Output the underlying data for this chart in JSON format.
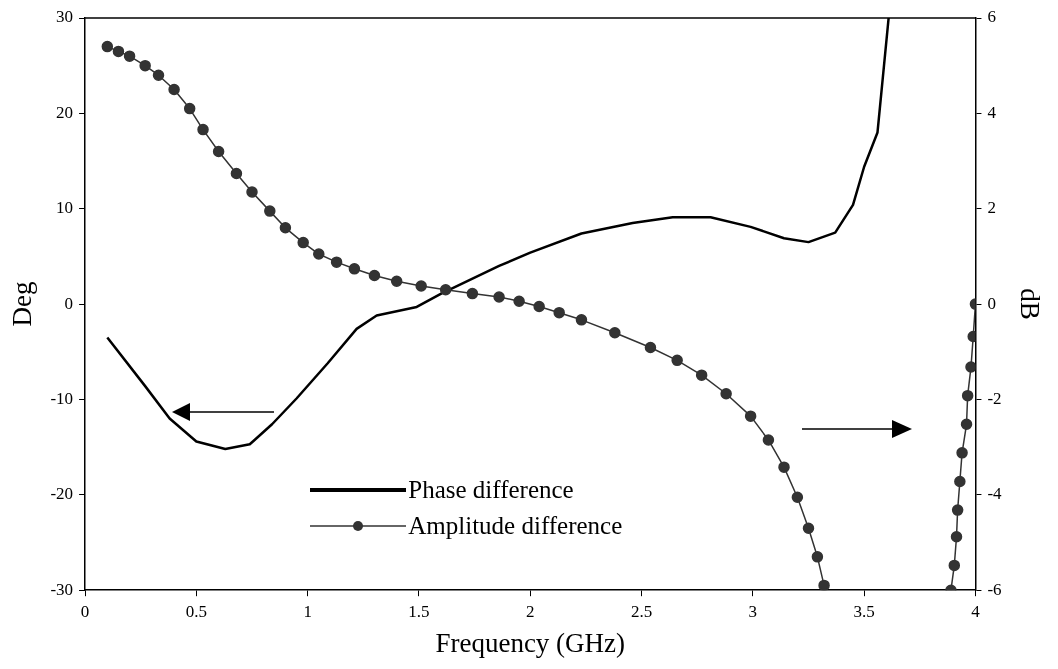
{
  "chart_data": {
    "type": "line",
    "xlabel": "Frequency (GHz)",
    "ylabel": "Deg",
    "y2label": "dB",
    "xlim": [
      0,
      4
    ],
    "xticks": [
      0,
      0.5,
      1,
      1.5,
      2,
      2.5,
      3,
      3.5,
      4
    ],
    "ylim": [
      -30,
      30
    ],
    "yticks": [
      -30,
      -20,
      -10,
      0,
      10,
      20,
      30
    ],
    "y2lim": [
      -6,
      6
    ],
    "y2ticks": [
      -6,
      -4,
      -2,
      0,
      2,
      4,
      6
    ],
    "grid": false,
    "legend": "bottom",
    "series": [
      {
        "name": "Phase difference",
        "color": "#000000",
        "marker": "none",
        "x": [
          0.1,
          0.27,
          0.38,
          0.5,
          0.63,
          0.74,
          0.84,
          0.95,
          1.09,
          1.22,
          1.31,
          1.49,
          1.6,
          1.86,
          2.0,
          2.23,
          2.46,
          2.64,
          2.81,
          2.99,
          3.14,
          3.25,
          3.37,
          3.45,
          3.5,
          3.56,
          3.61
        ],
        "values": [
          -3.5,
          -8.6,
          -12,
          -14.4,
          -15.2,
          -14.7,
          -12.6,
          -9.9,
          -6.2,
          -2.6,
          -1.2,
          -0.3,
          1.1,
          4.0,
          5.4,
          7.4,
          8.5,
          9.1,
          9.1,
          8.1,
          6.9,
          6.5,
          7.5,
          10.4,
          14.4,
          18,
          30
        ]
      },
      {
        "name": "Amplitude difference",
        "color": "#333333",
        "marker": "circle",
        "axis": "y2",
        "x": [
          0.1,
          0.15,
          0.2,
          0.27,
          0.33,
          0.4,
          0.47,
          0.53,
          0.6,
          0.68,
          0.75,
          0.83,
          0.9,
          0.98,
          1.05,
          1.13,
          1.21,
          1.3,
          1.4,
          1.51,
          1.62,
          1.74,
          1.86,
          1.95,
          2.04,
          2.13,
          2.23,
          2.38,
          2.54,
          2.66,
          2.77,
          2.88,
          2.99,
          3.07,
          3.14,
          3.2,
          3.25,
          3.29,
          3.32,
          3.6,
          3.89,
          3.905,
          3.915,
          3.92,
          3.93,
          3.94,
          3.96,
          3.965,
          3.98,
          3.99,
          4.0
        ],
        "values": [
          5.4,
          5.3,
          5.2,
          5.0,
          4.8,
          4.5,
          4.1,
          3.66,
          3.2,
          2.74,
          2.35,
          1.95,
          1.6,
          1.29,
          1.05,
          0.88,
          0.74,
          0.6,
          0.48,
          0.38,
          0.3,
          0.22,
          0.15,
          0.06,
          -0.05,
          -0.18,
          -0.33,
          -0.6,
          -0.91,
          -1.18,
          -1.49,
          -1.88,
          -2.35,
          -2.85,
          -3.42,
          -4.05,
          -4.7,
          -5.3,
          -5.9,
          null,
          -6.0,
          -5.48,
          -4.88,
          -4.32,
          -3.72,
          -3.12,
          -2.52,
          -1.92,
          -1.32,
          -0.68,
          0
        ]
      }
    ]
  }
}
